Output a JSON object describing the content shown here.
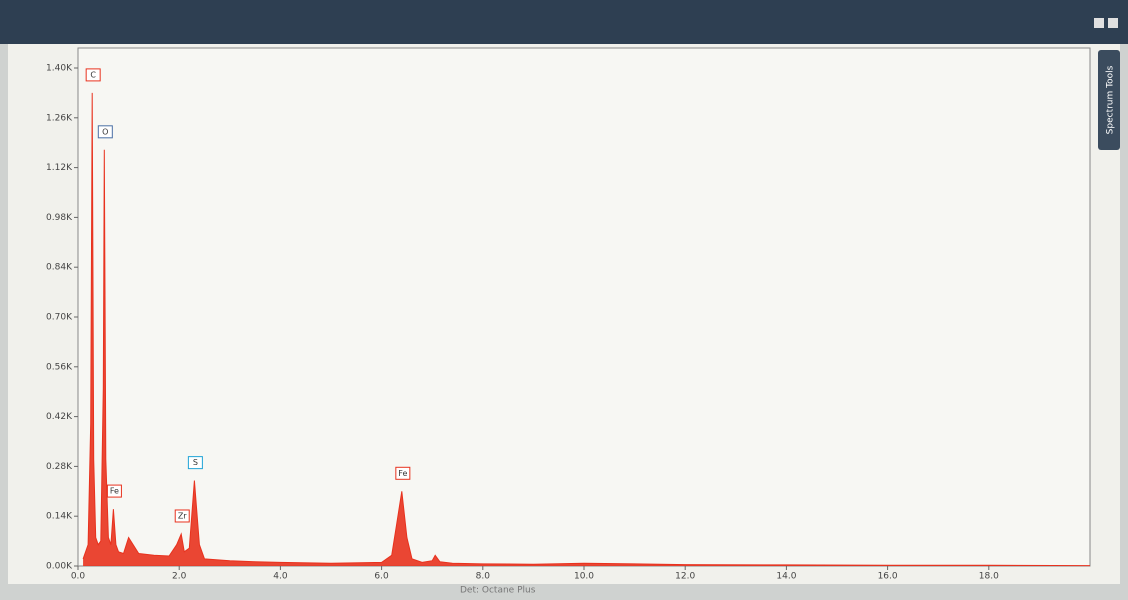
{
  "chart_data": {
    "type": "area",
    "color": "#e8321e",
    "x": [
      0.1,
      0.2,
      0.25,
      0.28,
      0.31,
      0.35,
      0.4,
      0.45,
      0.5,
      0.52,
      0.55,
      0.6,
      0.65,
      0.7,
      0.75,
      0.8,
      0.9,
      1.0,
      1.2,
      1.5,
      1.8,
      1.95,
      2.04,
      2.1,
      2.2,
      2.3,
      2.4,
      2.5,
      3.0,
      3.5,
      4.0,
      5.0,
      6.0,
      6.2,
      6.3,
      6.4,
      6.5,
      6.6,
      6.8,
      7.0,
      7.06,
      7.15,
      7.4,
      8.0,
      9.0,
      10.0,
      12.0,
      14.0,
      16.0,
      18.0,
      20.0
    ],
    "values": [
      20,
      60,
      400,
      1330,
      300,
      80,
      60,
      70,
      500,
      1170,
      300,
      80,
      60,
      160,
      60,
      40,
      35,
      80,
      35,
      30,
      28,
      60,
      90,
      40,
      50,
      240,
      60,
      20,
      15,
      12,
      10,
      8,
      10,
      30,
      120,
      210,
      80,
      20,
      10,
      15,
      30,
      12,
      8,
      6,
      5,
      8,
      4,
      3,
      2,
      2,
      1
    ],
    "xlim": [
      0,
      20
    ],
    "ylim": [
      0,
      1400
    ],
    "xticks": [
      {
        "value": 0,
        "label": "0.0"
      },
      {
        "value": 2,
        "label": "2.0"
      },
      {
        "value": 4,
        "label": "4.0"
      },
      {
        "value": 6,
        "label": "6.0"
      },
      {
        "value": 8,
        "label": "8.0"
      },
      {
        "value": 10,
        "label": "10.0"
      },
      {
        "value": 12,
        "label": "12.0"
      },
      {
        "value": 14,
        "label": "14.0"
      },
      {
        "value": 16,
        "label": "16.0"
      },
      {
        "value": 18,
        "label": "18.0"
      }
    ],
    "yticks": [
      {
        "value": 0,
        "label": "0.00K"
      },
      {
        "value": 140,
        "label": "0.14K"
      },
      {
        "value": 280,
        "label": "0.28K"
      },
      {
        "value": 420,
        "label": "0.42K"
      },
      {
        "value": 560,
        "label": "0.56K"
      },
      {
        "value": 700,
        "label": "0.70K"
      },
      {
        "value": 840,
        "label": "0.84K"
      },
      {
        "value": 980,
        "label": "0.98K"
      },
      {
        "value": 1120,
        "label": "1.12K"
      },
      {
        "value": 1260,
        "label": "1.26K"
      },
      {
        "value": 1400,
        "label": "1.40K"
      }
    ],
    "annotations": [
      {
        "text": "C",
        "x": 0.28,
        "y": 1330,
        "color": "#e8321e"
      },
      {
        "text": "O",
        "x": 0.52,
        "y": 1170,
        "color": "#4a6fa5"
      },
      {
        "text": "Fe",
        "x": 0.7,
        "y": 160,
        "color": "#e8321e"
      },
      {
        "text": "Zr",
        "x": 2.04,
        "y": 90,
        "color": "#e8321e"
      },
      {
        "text": "S",
        "x": 2.3,
        "y": 240,
        "color": "#1fa3d6"
      },
      {
        "text": "Fe",
        "x": 6.4,
        "y": 210,
        "color": "#e8321e"
      }
    ]
  },
  "ui": {
    "side_tab": "Spectrum Tools",
    "status": "Det: Octane Plus"
  }
}
